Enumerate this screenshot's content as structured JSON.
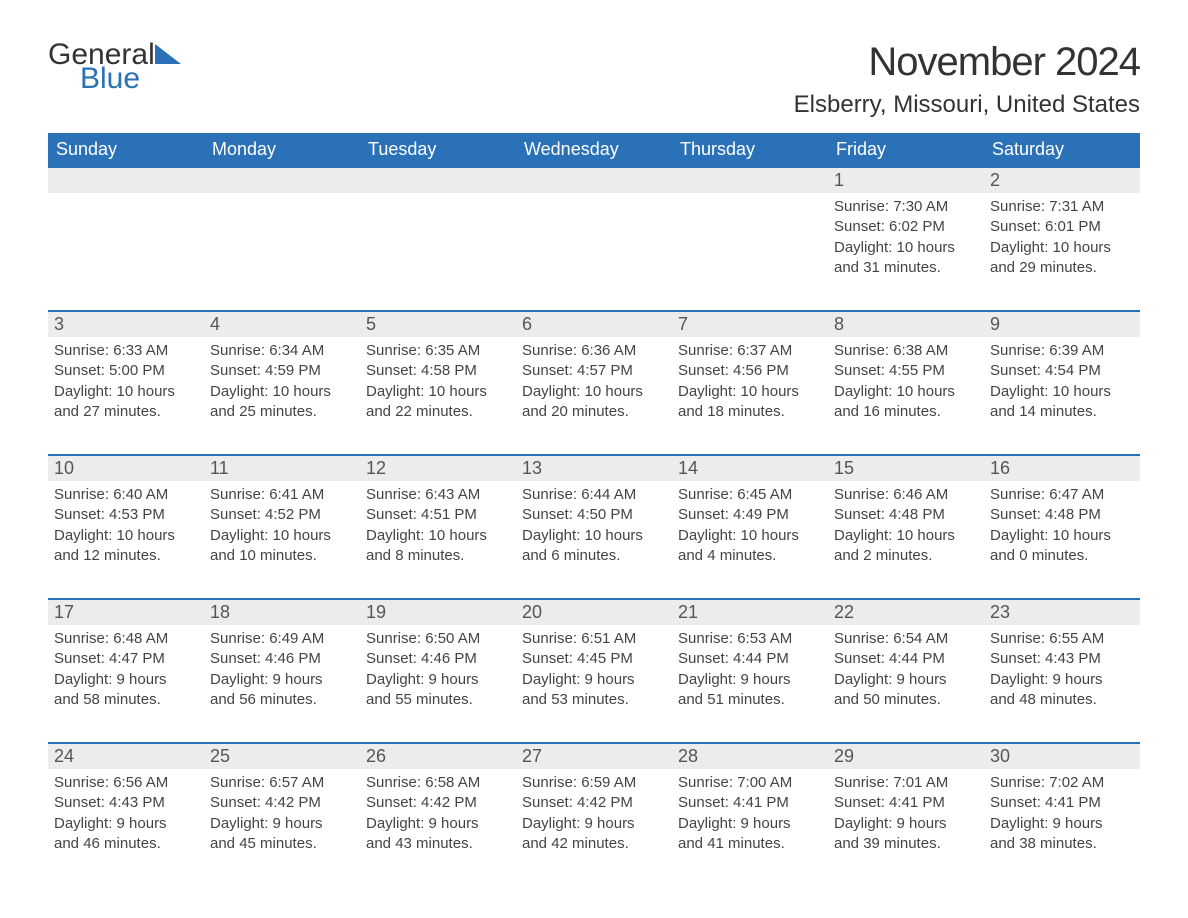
{
  "logo": {
    "text1": "General",
    "text2": "Blue"
  },
  "title": "November 2024",
  "location": "Elsberry, Missouri, United States",
  "colors": {
    "header_bg": "#2a71b8",
    "header_text": "#ffffff",
    "daynum_bg": "#ececec",
    "daynum_text": "#555555",
    "body_text": "#444444",
    "rule": "#2a71b8"
  },
  "daysOfWeek": [
    "Sunday",
    "Monday",
    "Tuesday",
    "Wednesday",
    "Thursday",
    "Friday",
    "Saturday"
  ],
  "weeks": [
    [
      null,
      null,
      null,
      null,
      null,
      {
        "n": "1",
        "sunrise": "7:30 AM",
        "sunset": "6:02 PM",
        "dl1": "10 hours",
        "dl2": "and 31 minutes."
      },
      {
        "n": "2",
        "sunrise": "7:31 AM",
        "sunset": "6:01 PM",
        "dl1": "10 hours",
        "dl2": "and 29 minutes."
      }
    ],
    [
      {
        "n": "3",
        "sunrise": "6:33 AM",
        "sunset": "5:00 PM",
        "dl1": "10 hours",
        "dl2": "and 27 minutes."
      },
      {
        "n": "4",
        "sunrise": "6:34 AM",
        "sunset": "4:59 PM",
        "dl1": "10 hours",
        "dl2": "and 25 minutes."
      },
      {
        "n": "5",
        "sunrise": "6:35 AM",
        "sunset": "4:58 PM",
        "dl1": "10 hours",
        "dl2": "and 22 minutes."
      },
      {
        "n": "6",
        "sunrise": "6:36 AM",
        "sunset": "4:57 PM",
        "dl1": "10 hours",
        "dl2": "and 20 minutes."
      },
      {
        "n": "7",
        "sunrise": "6:37 AM",
        "sunset": "4:56 PM",
        "dl1": "10 hours",
        "dl2": "and 18 minutes."
      },
      {
        "n": "8",
        "sunrise": "6:38 AM",
        "sunset": "4:55 PM",
        "dl1": "10 hours",
        "dl2": "and 16 minutes."
      },
      {
        "n": "9",
        "sunrise": "6:39 AM",
        "sunset": "4:54 PM",
        "dl1": "10 hours",
        "dl2": "and 14 minutes."
      }
    ],
    [
      {
        "n": "10",
        "sunrise": "6:40 AM",
        "sunset": "4:53 PM",
        "dl1": "10 hours",
        "dl2": "and 12 minutes."
      },
      {
        "n": "11",
        "sunrise": "6:41 AM",
        "sunset": "4:52 PM",
        "dl1": "10 hours",
        "dl2": "and 10 minutes."
      },
      {
        "n": "12",
        "sunrise": "6:43 AM",
        "sunset": "4:51 PM",
        "dl1": "10 hours",
        "dl2": "and 8 minutes."
      },
      {
        "n": "13",
        "sunrise": "6:44 AM",
        "sunset": "4:50 PM",
        "dl1": "10 hours",
        "dl2": "and 6 minutes."
      },
      {
        "n": "14",
        "sunrise": "6:45 AM",
        "sunset": "4:49 PM",
        "dl1": "10 hours",
        "dl2": "and 4 minutes."
      },
      {
        "n": "15",
        "sunrise": "6:46 AM",
        "sunset": "4:48 PM",
        "dl1": "10 hours",
        "dl2": "and 2 minutes."
      },
      {
        "n": "16",
        "sunrise": "6:47 AM",
        "sunset": "4:48 PM",
        "dl1": "10 hours",
        "dl2": "and 0 minutes."
      }
    ],
    [
      {
        "n": "17",
        "sunrise": "6:48 AM",
        "sunset": "4:47 PM",
        "dl1": "9 hours",
        "dl2": "and 58 minutes."
      },
      {
        "n": "18",
        "sunrise": "6:49 AM",
        "sunset": "4:46 PM",
        "dl1": "9 hours",
        "dl2": "and 56 minutes."
      },
      {
        "n": "19",
        "sunrise": "6:50 AM",
        "sunset": "4:46 PM",
        "dl1": "9 hours",
        "dl2": "and 55 minutes."
      },
      {
        "n": "20",
        "sunrise": "6:51 AM",
        "sunset": "4:45 PM",
        "dl1": "9 hours",
        "dl2": "and 53 minutes."
      },
      {
        "n": "21",
        "sunrise": "6:53 AM",
        "sunset": "4:44 PM",
        "dl1": "9 hours",
        "dl2": "and 51 minutes."
      },
      {
        "n": "22",
        "sunrise": "6:54 AM",
        "sunset": "4:44 PM",
        "dl1": "9 hours",
        "dl2": "and 50 minutes."
      },
      {
        "n": "23",
        "sunrise": "6:55 AM",
        "sunset": "4:43 PM",
        "dl1": "9 hours",
        "dl2": "and 48 minutes."
      }
    ],
    [
      {
        "n": "24",
        "sunrise": "6:56 AM",
        "sunset": "4:43 PM",
        "dl1": "9 hours",
        "dl2": "and 46 minutes."
      },
      {
        "n": "25",
        "sunrise": "6:57 AM",
        "sunset": "4:42 PM",
        "dl1": "9 hours",
        "dl2": "and 45 minutes."
      },
      {
        "n": "26",
        "sunrise": "6:58 AM",
        "sunset": "4:42 PM",
        "dl1": "9 hours",
        "dl2": "and 43 minutes."
      },
      {
        "n": "27",
        "sunrise": "6:59 AM",
        "sunset": "4:42 PM",
        "dl1": "9 hours",
        "dl2": "and 42 minutes."
      },
      {
        "n": "28",
        "sunrise": "7:00 AM",
        "sunset": "4:41 PM",
        "dl1": "9 hours",
        "dl2": "and 41 minutes."
      },
      {
        "n": "29",
        "sunrise": "7:01 AM",
        "sunset": "4:41 PM",
        "dl1": "9 hours",
        "dl2": "and 39 minutes."
      },
      {
        "n": "30",
        "sunrise": "7:02 AM",
        "sunset": "4:41 PM",
        "dl1": "9 hours",
        "dl2": "and 38 minutes."
      }
    ]
  ],
  "labels": {
    "sunrise": "Sunrise: ",
    "sunset": "Sunset: ",
    "daylight": "Daylight: "
  }
}
